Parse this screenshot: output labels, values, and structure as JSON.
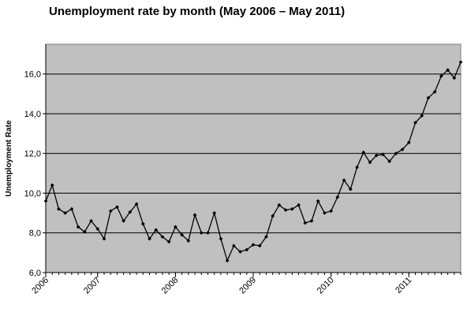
{
  "chart_data": {
    "type": "line",
    "title": "Unemployment rate by month (May 2006 – May 2011)",
    "ylabel": "Unemployment Rate",
    "xlabel": "",
    "ylim": [
      6.0,
      17.5
    ],
    "y_ticks": [
      "6,0",
      "8,0",
      "10,0",
      "12,0",
      "14,0",
      "16,0"
    ],
    "x_tick_labels": [
      "2006",
      "2007",
      "2008",
      "2009",
      "2010",
      "2011"
    ],
    "grid": "horizontal",
    "plot_background": "#c0c0c0",
    "line_color": "#000000",
    "series": [
      {
        "values": [
          9.6,
          10.4,
          9.2,
          9.0,
          9.2,
          8.3,
          8.05,
          8.6,
          8.2,
          7.7,
          9.1,
          9.3,
          8.6,
          9.05,
          9.45,
          8.45,
          7.7,
          8.15,
          7.8,
          7.55,
          8.3,
          7.9,
          7.6,
          8.9,
          8.0,
          8.0,
          9.0,
          7.7,
          6.6,
          7.35,
          7.05,
          7.15,
          7.4,
          7.35,
          7.8,
          8.85,
          9.4,
          9.15,
          9.2,
          9.4,
          8.5,
          8.6,
          9.6,
          9.0,
          9.1,
          9.8,
          10.65,
          10.2,
          11.3,
          12.05,
          11.55,
          11.9,
          11.95,
          11.6,
          12.0,
          12.2,
          12.55,
          13.55,
          13.9,
          14.8,
          15.1,
          15.9,
          16.2,
          15.8,
          16.6
        ]
      }
    ]
  }
}
